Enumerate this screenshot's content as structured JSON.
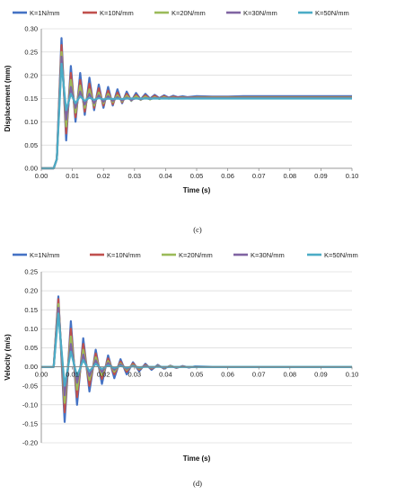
{
  "chart_data": [
    {
      "type": "line",
      "caption": "(c)",
      "xlabel": "Time (s)",
      "ylabel": "Displacement (mm)",
      "xlim": [
        0,
        0.1
      ],
      "ylim": [
        0,
        0.3
      ],
      "xticks": [
        "0.00",
        "0.01",
        "0.02",
        "0.03",
        "0.04",
        "0.05",
        "0.06",
        "0.07",
        "0.08",
        "0.09",
        "0.10"
      ],
      "yticks": [
        "0.00",
        "0.05",
        "0.10",
        "0.15",
        "0.20",
        "0.25",
        "0.30"
      ],
      "legend_position": "top",
      "x": [
        0.0,
        0.002,
        0.004,
        0.005,
        0.0065,
        0.008,
        0.0095,
        0.011,
        0.0125,
        0.014,
        0.0155,
        0.017,
        0.0185,
        0.02,
        0.0215,
        0.023,
        0.0245,
        0.026,
        0.0275,
        0.029,
        0.0305,
        0.032,
        0.0335,
        0.035,
        0.0365,
        0.038,
        0.0395,
        0.041,
        0.0425,
        0.044,
        0.0455,
        0.047,
        0.05,
        0.055,
        0.06,
        0.065,
        0.07,
        0.1
      ],
      "series": [
        {
          "name": "K=1N/mm",
          "color": "#4472C4",
          "values": [
            0,
            0,
            0,
            0.02,
            0.28,
            0.06,
            0.22,
            0.1,
            0.205,
            0.115,
            0.195,
            0.125,
            0.18,
            0.13,
            0.175,
            0.135,
            0.17,
            0.14,
            0.165,
            0.145,
            0.162,
            0.148,
            0.16,
            0.15,
            0.158,
            0.151,
            0.157,
            0.152,
            0.156,
            0.153,
            0.155,
            0.153,
            0.155,
            0.154,
            0.154,
            0.155,
            0.155,
            0.155
          ]
        },
        {
          "name": "K=10N/mm",
          "color": "#C0504D",
          "values": [
            0,
            0,
            0,
            0.02,
            0.265,
            0.075,
            0.205,
            0.11,
            0.19,
            0.122,
            0.182,
            0.13,
            0.172,
            0.135,
            0.167,
            0.138,
            0.163,
            0.142,
            0.16,
            0.146,
            0.158,
            0.148,
            0.157,
            0.149,
            0.156,
            0.15,
            0.155,
            0.151,
            0.154,
            0.152,
            0.153,
            0.152,
            0.153,
            0.153,
            0.153,
            0.153,
            0.153,
            0.153
          ]
        },
        {
          "name": "K=20N/mm",
          "color": "#9BBB59",
          "values": [
            0,
            0,
            0,
            0.02,
            0.25,
            0.09,
            0.19,
            0.12,
            0.178,
            0.13,
            0.17,
            0.135,
            0.163,
            0.14,
            0.16,
            0.142,
            0.157,
            0.144,
            0.156,
            0.146,
            0.155,
            0.147,
            0.154,
            0.148,
            0.153,
            0.149,
            0.153,
            0.15,
            0.152,
            0.15,
            0.152,
            0.151,
            0.152,
            0.152,
            0.152,
            0.152,
            0.152,
            0.152
          ]
        },
        {
          "name": "K=30N/mm",
          "color": "#8064A2",
          "values": [
            0,
            0,
            0,
            0.02,
            0.24,
            0.105,
            0.175,
            0.13,
            0.165,
            0.137,
            0.16,
            0.14,
            0.157,
            0.143,
            0.155,
            0.145,
            0.153,
            0.146,
            0.152,
            0.147,
            0.151,
            0.148,
            0.151,
            0.149,
            0.151,
            0.15,
            0.151,
            0.15,
            0.151,
            0.15,
            0.151,
            0.151,
            0.151,
            0.151,
            0.151,
            0.151,
            0.151,
            0.151
          ]
        },
        {
          "name": "K=50N/mm",
          "color": "#4BACC6",
          "values": [
            0,
            0,
            0,
            0.02,
            0.225,
            0.125,
            0.16,
            0.14,
            0.155,
            0.145,
            0.152,
            0.147,
            0.151,
            0.148,
            0.15,
            0.149,
            0.15,
            0.149,
            0.15,
            0.15,
            0.15,
            0.15,
            0.15,
            0.15,
            0.15,
            0.15,
            0.15,
            0.15,
            0.15,
            0.15,
            0.15,
            0.15,
            0.15,
            0.15,
            0.15,
            0.15,
            0.15,
            0.15
          ]
        }
      ]
    },
    {
      "type": "line",
      "caption": "(d)",
      "xlabel": "Time (s)",
      "ylabel": "Velocity (m/s)",
      "xlim": [
        0,
        0.1
      ],
      "ylim": [
        -0.2,
        0.25
      ],
      "xticks": [
        "0.00",
        "0.01",
        "0.02",
        "0.03",
        "0.04",
        "0.05",
        "0.06",
        "0.07",
        "0.08",
        "0.09",
        "0.10"
      ],
      "yticks": [
        "-0.20",
        "-0.15",
        "-0.10",
        "-0.05",
        "0.00",
        "0.05",
        "0.10",
        "0.15",
        "0.20",
        "0.25"
      ],
      "legend_position": "top",
      "x": [
        0.0,
        0.002,
        0.004,
        0.0055,
        0.0075,
        0.0095,
        0.0115,
        0.0135,
        0.0155,
        0.0175,
        0.0195,
        0.0215,
        0.0235,
        0.0255,
        0.0275,
        0.0295,
        0.0315,
        0.0335,
        0.0355,
        0.0375,
        0.0395,
        0.0415,
        0.0435,
        0.0455,
        0.0475,
        0.0495,
        0.055,
        0.06,
        0.1
      ],
      "series": [
        {
          "name": "K=1N/mm",
          "color": "#4472C4",
          "values": [
            0,
            0,
            0,
            0.185,
            -0.145,
            0.12,
            -0.1,
            0.075,
            -0.065,
            0.045,
            -0.045,
            0.03,
            -0.03,
            0.02,
            -0.02,
            0.012,
            -0.012,
            0.008,
            -0.008,
            0.005,
            -0.005,
            0.003,
            -0.003,
            0.002,
            -0.002,
            0.001,
            0,
            0,
            0
          ]
        },
        {
          "name": "K=10N/mm",
          "color": "#C0504D",
          "values": [
            0,
            0,
            0,
            0.178,
            -0.12,
            0.1,
            -0.08,
            0.06,
            -0.05,
            0.035,
            -0.032,
            0.022,
            -0.02,
            0.014,
            -0.013,
            0.009,
            -0.008,
            0.005,
            -0.005,
            0.003,
            -0.003,
            0.002,
            -0.002,
            0.001,
            -0.001,
            0,
            0,
            0,
            0
          ]
        },
        {
          "name": "K=20N/mm",
          "color": "#9BBB59",
          "values": [
            0,
            0,
            0,
            0.165,
            -0.095,
            0.08,
            -0.06,
            0.045,
            -0.035,
            0.025,
            -0.022,
            0.015,
            -0.013,
            0.009,
            -0.008,
            0.005,
            -0.005,
            0.003,
            -0.003,
            0.002,
            -0.002,
            0.001,
            -0.001,
            0,
            0,
            0,
            0,
            0,
            0
          ]
        },
        {
          "name": "K=30N/mm",
          "color": "#8064A2",
          "values": [
            0,
            0,
            0,
            0.155,
            -0.075,
            0.06,
            -0.042,
            0.032,
            -0.024,
            0.017,
            -0.014,
            0.01,
            -0.008,
            0.006,
            -0.005,
            0.003,
            -0.003,
            0.002,
            -0.002,
            0.001,
            -0.001,
            0,
            0,
            0,
            0,
            0,
            0,
            0,
            0
          ]
        },
        {
          "name": "K=50N/mm",
          "color": "#4BACC6",
          "values": [
            0,
            0,
            0,
            0.14,
            -0.05,
            0.04,
            -0.025,
            0.018,
            -0.012,
            0.008,
            -0.006,
            0.004,
            -0.003,
            0.002,
            -0.002,
            0.001,
            -0.001,
            0,
            0,
            0,
            0,
            0,
            0,
            0,
            0,
            0,
            0,
            0,
            0
          ]
        }
      ]
    }
  ]
}
